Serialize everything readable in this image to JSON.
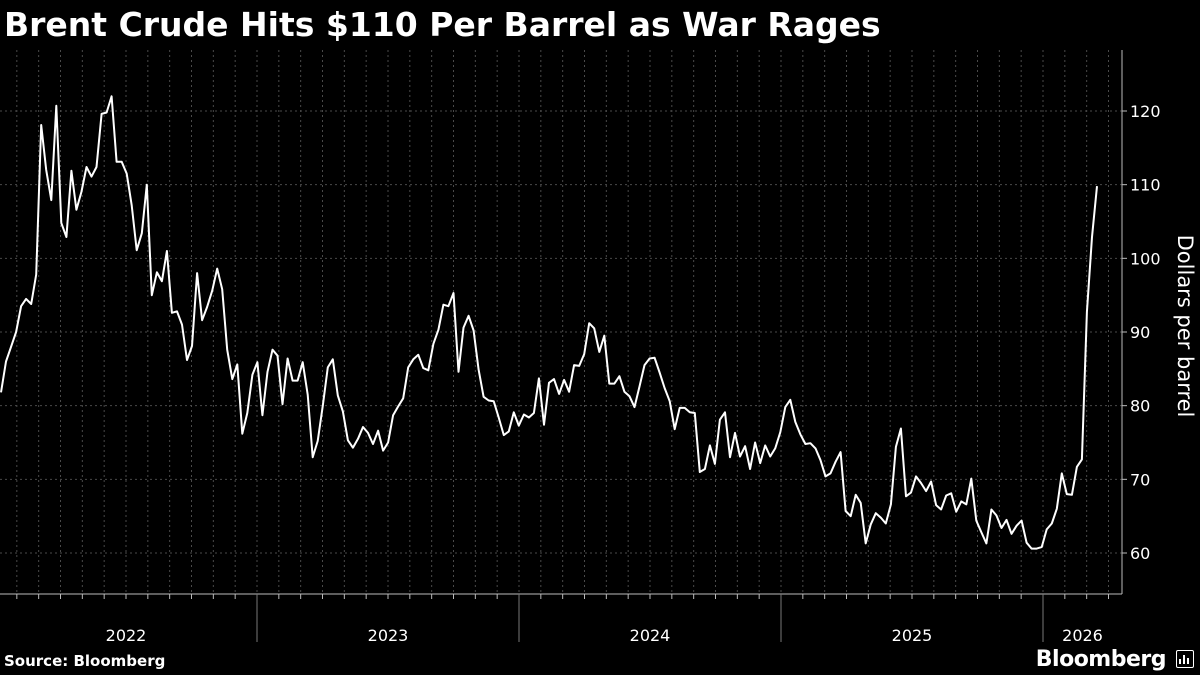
{
  "title": "Brent Crude Hits $110 Per Barrel as War Rages",
  "source": "Source: Bloomberg",
  "brand": "Bloomberg",
  "colors": {
    "background": "#000000",
    "line": "#ffffff",
    "grid": "#555555",
    "text": "#ffffff"
  },
  "chart_data": {
    "type": "line",
    "title": "Brent Crude Hits $110 Per Barrel as War Rages",
    "xlabel": "",
    "ylabel": "Dollars per barrel",
    "x_ticks": [
      "2022",
      "2023",
      "2024",
      "2025",
      "2026"
    ],
    "y_ticks": [
      60,
      70,
      80,
      90,
      100,
      110,
      120
    ],
    "ylim": [
      54,
      128
    ],
    "xlim": [
      2021.48,
      2026.33
    ],
    "grid": true,
    "y_axis_side": "right",
    "series": [
      {
        "frequency": "weekly",
        "values": [
          81.8,
          86,
          88,
          90,
          93.5,
          94.5,
          93.8,
          97.8,
          118.1,
          112,
          107.9,
          120.7,
          104.8,
          102.9,
          111.9,
          106.6,
          109,
          112.4,
          111.1,
          112.4,
          119.6,
          119.8,
          122,
          113.1,
          113.1,
          111.5,
          107.2,
          101.1,
          103.4,
          110,
          95,
          98.1,
          96.9,
          101,
          92.6,
          92.8,
          91,
          86.2,
          88.1,
          98,
          91.6,
          93.4,
          95.6,
          98.6,
          95.8,
          87.6,
          83.6,
          85.6,
          76.2,
          79,
          84.2,
          85.9,
          78.7,
          84.6,
          87.6,
          86.8,
          80.2,
          86.4,
          83.4,
          83.4,
          85.9,
          81.5,
          73,
          75.2,
          80,
          85.2,
          86.3,
          81.4,
          79.2,
          75.3,
          74.3,
          75.5,
          77.1,
          76.3,
          74.8,
          76.6,
          73.9,
          75,
          78.7,
          79.9,
          81,
          85.2,
          86.3,
          86.9,
          85.1,
          84.8,
          88.4,
          90.3,
          93.7,
          93.5,
          95.3,
          84.6,
          90.6,
          92.2,
          90.2,
          84.9,
          81.2,
          80.7,
          80.6,
          78.4,
          76,
          76.5,
          79.1,
          77.3,
          78.8,
          78.4,
          79,
          83.7,
          77.4,
          83.1,
          83.6,
          81.6,
          83.5,
          81.9,
          85.5,
          85.4,
          87,
          91.2,
          90.5,
          87.3,
          89.5,
          83,
          83,
          84,
          81.9,
          81.3,
          79.8,
          82.6,
          85.5,
          86.4,
          86.5,
          84.5,
          82.4,
          80.6,
          76.8,
          79.7,
          79.7,
          79.1,
          79,
          71,
          71.4,
          74.6,
          72.1,
          78.1,
          79.1,
          73,
          76.3,
          73.1,
          74.5,
          71.4,
          75,
          72.2,
          74.6,
          73.1,
          74.2,
          76.4,
          79.8,
          80.8,
          77.8,
          76.1,
          74.8,
          74.9,
          74.2,
          72.6,
          70.4,
          70.8,
          72.4,
          73.7,
          65.7,
          65,
          67.9,
          66.8,
          61.3,
          63.9,
          65.4,
          64.8,
          64,
          66.6,
          74.4,
          76.9,
          67.7,
          68.2,
          70.4,
          69.5,
          68.4,
          69.7,
          66.5,
          65.9,
          67.8,
          68.1,
          65.6,
          67,
          66.6,
          70.1,
          64.4,
          62.8,
          61.3,
          65.9,
          65.1,
          63.4,
          64.5,
          62.6,
          63.7,
          64.4,
          61.4,
          60.6,
          60.6,
          60.8,
          63.2,
          64,
          66,
          70.8,
          68,
          67.9,
          71.7,
          72.7,
          92.7,
          102.9,
          109.8
        ]
      }
    ]
  }
}
